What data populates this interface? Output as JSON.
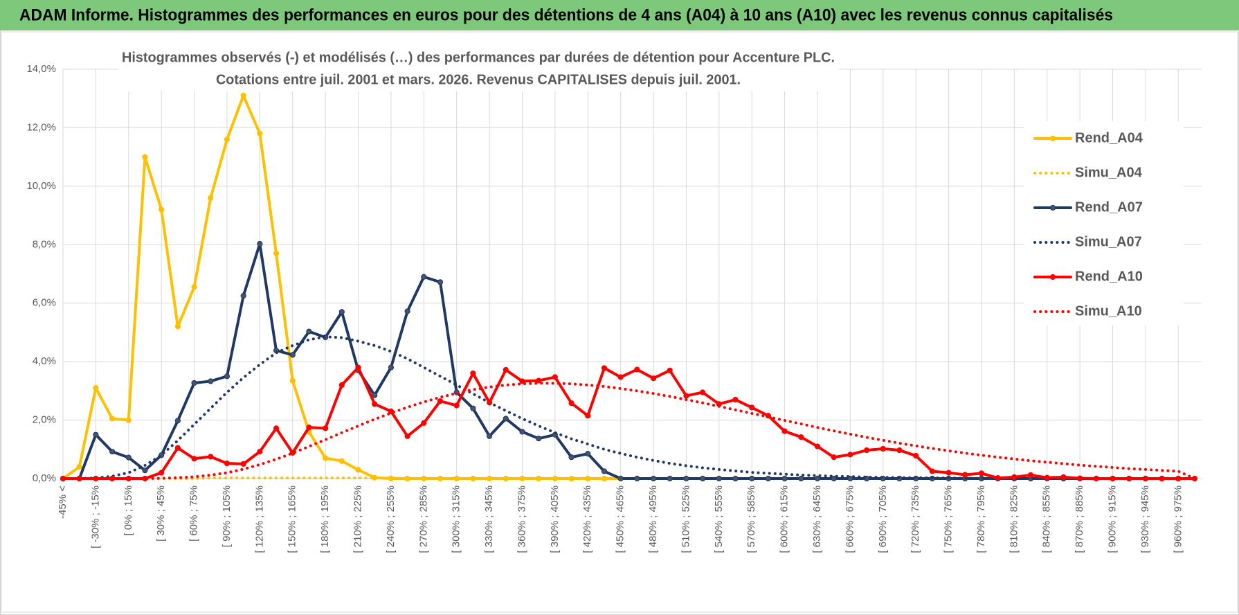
{
  "chart_data": {
    "type": "line",
    "title": "ADAM Informe. Histogrammes des performances en euros pour des détentions de 4 ans (A04) à 10 ans (A10) avec les revenus connus capitalisés",
    "subtitle": [
      "Histogrammes observés (-) et modélisés (…) des performances par durées de détention pour Accenture PLC.",
      "Cotations entre juil. 2001 et mars. 2026. Revenus CAPITALISES depuis juil. 2001."
    ],
    "categories": [
      "-45% <",
      null,
      "[ -30% ; -15%",
      null,
      "[ 0% ; 15%",
      null,
      "[ 30% ; 45%",
      null,
      "[ 60% ; 75%",
      null,
      "[ 90% ; 105%",
      null,
      "[ 120% ; 135%",
      null,
      "[ 150% ; 165%",
      null,
      "[ 180% ; 195%",
      null,
      "[ 210% ; 225%",
      null,
      "[ 240% ; 255%",
      null,
      "[ 270% ; 285%",
      null,
      "[ 300% ; 315%",
      null,
      "[ 330% ; 345%",
      null,
      "[ 360% ; 375%",
      null,
      "[ 390% ; 405%",
      null,
      "[ 420% ; 435%",
      null,
      "[ 450% ; 465%",
      null,
      "[ 480% ; 495%",
      null,
      "[ 510% ; 525%",
      null,
      "[ 540% ; 555%",
      null,
      "[ 570% ; 585%",
      null,
      "[ 600% ; 615%",
      null,
      "[ 630% ; 645%",
      null,
      "[ 660% ; 675%",
      null,
      "[ 690% ; 705%",
      null,
      "[ 720% ; 735%",
      null,
      "[ 750% ; 765%",
      null,
      "[ 780% ; 795%",
      null,
      "[ 810% ; 825%",
      null,
      "[ 840% ; 855%",
      null,
      "[ 870% ; 885%",
      null,
      "[ 900% ; 915%",
      null,
      "[ 930% ; 945%",
      null,
      "[ 960% ; 975%",
      null
    ],
    "ylim": [
      0,
      14
    ],
    "yticks": [
      {
        "value": 0,
        "label": "0,0%"
      },
      {
        "value": 2,
        "label": "2,0%"
      },
      {
        "value": 4,
        "label": "4,0%"
      },
      {
        "value": 6,
        "label": "6,0%"
      },
      {
        "value": 8,
        "label": "8,0%"
      },
      {
        "value": 10,
        "label": "10,0%"
      },
      {
        "value": 12,
        "label": "12,0%"
      },
      {
        "value": 14,
        "label": "14,0%"
      }
    ],
    "grid": true,
    "legend": "right",
    "series": [
      {
        "name": "Rend_A04",
        "color": "#ffc000",
        "style": "solid",
        "values": [
          0,
          0.4,
          3.1,
          2.05,
          2.0,
          11.0,
          9.2,
          5.2,
          6.55,
          9.6,
          11.6,
          13.1,
          11.8,
          7.7,
          3.35,
          1.6,
          0.7,
          0.6,
          0.3,
          0.03,
          0,
          0,
          0,
          0,
          0,
          0,
          0,
          0,
          0,
          0,
          0,
          0,
          0,
          0,
          0,
          0,
          0,
          0,
          0,
          0,
          0,
          0,
          0,
          0,
          0,
          0,
          0,
          0,
          0,
          0,
          0,
          0,
          0,
          0,
          0,
          0,
          0,
          0,
          0,
          0,
          0,
          0,
          0,
          0,
          0,
          0,
          0,
          0,
          0,
          0
        ]
      },
      {
        "name": "Simu_A04",
        "color": "#ffc000",
        "style": "dotted",
        "values": [
          0,
          0,
          0,
          0,
          0,
          0,
          0,
          0,
          0,
          0.02,
          0.02,
          0.02,
          0.02,
          0.02,
          0.02,
          0.02,
          0.02,
          0.02,
          0.02,
          0.02,
          0.02,
          0,
          0,
          0,
          0,
          0,
          0,
          0,
          0,
          0,
          0,
          0,
          0,
          0,
          0,
          0,
          0,
          0,
          0,
          0,
          0,
          0,
          0,
          0,
          0,
          0,
          0,
          0,
          0,
          0,
          0,
          0,
          0,
          0,
          0,
          0,
          0,
          0,
          0,
          0,
          0,
          0,
          0,
          0,
          0,
          0,
          0,
          0,
          0,
          0
        ]
      },
      {
        "name": "Rend_A07",
        "color": "#1f3864",
        "style": "solid",
        "values": [
          0,
          0,
          1.5,
          0.92,
          0.72,
          0.28,
          0.8,
          1.98,
          3.27,
          3.33,
          3.5,
          6.25,
          8.03,
          4.38,
          4.23,
          5.03,
          4.83,
          5.7,
          3.7,
          2.85,
          3.8,
          5.72,
          6.9,
          6.72,
          2.95,
          2.4,
          1.45,
          2.05,
          1.6,
          1.37,
          1.5,
          0.73,
          0.85,
          0.25,
          0,
          0,
          0,
          0,
          0,
          0,
          0,
          0,
          0,
          0,
          0,
          0,
          0,
          0,
          0,
          0,
          0,
          0,
          0,
          0,
          0,
          0,
          0,
          0,
          0,
          0,
          0,
          0,
          0,
          0,
          0,
          0,
          0,
          0,
          0,
          0
        ]
      },
      {
        "name": "Simu_A07",
        "color": "#1f3864",
        "style": "dotted",
        "values": [
          0,
          0,
          0.02,
          0.08,
          0.2,
          0.45,
          0.8,
          1.3,
          1.85,
          2.4,
          2.95,
          3.45,
          3.9,
          4.3,
          4.55,
          4.75,
          4.85,
          4.82,
          4.7,
          4.55,
          4.35,
          4.1,
          3.8,
          3.5,
          3.2,
          2.9,
          2.6,
          2.32,
          2.05,
          1.8,
          1.57,
          1.36,
          1.18,
          1.0,
          0.86,
          0.73,
          0.62,
          0.52,
          0.44,
          0.37,
          0.31,
          0.26,
          0.21,
          0.18,
          0.15,
          0.12,
          0.1,
          0.08,
          0.07,
          0.05,
          0.04,
          0.03,
          0.03,
          0.02,
          0.02,
          0.01,
          0.01,
          0.01,
          0,
          0,
          0,
          0,
          0,
          0,
          0,
          0,
          0,
          0,
          0,
          0
        ]
      },
      {
        "name": "Rend_A10",
        "color": "#ff0000",
        "style": "solid",
        "values": [
          0,
          0,
          0,
          0,
          0,
          0,
          0.2,
          1.05,
          0.68,
          0.75,
          0.52,
          0.5,
          0.92,
          1.72,
          0.88,
          1.75,
          1.72,
          3.2,
          3.8,
          2.55,
          2.3,
          1.45,
          1.9,
          2.65,
          2.5,
          3.6,
          2.6,
          3.72,
          3.33,
          3.35,
          3.47,
          2.58,
          2.15,
          3.78,
          3.47,
          3.73,
          3.43,
          3.7,
          2.83,
          2.95,
          2.55,
          2.7,
          2.43,
          2.15,
          1.62,
          1.42,
          1.1,
          0.73,
          0.82,
          0.97,
          1.02,
          0.97,
          0.78,
          0.25,
          0.2,
          0.13,
          0.18,
          0.02,
          0.05,
          0.12,
          0.03,
          0.05,
          0.01,
          0,
          0,
          0,
          0,
          0,
          0,
          0
        ]
      },
      {
        "name": "Simu_A10",
        "color": "#ff0000",
        "style": "dotted",
        "values": [
          0,
          0,
          0,
          0,
          0,
          0,
          0.01,
          0.03,
          0.06,
          0.12,
          0.2,
          0.32,
          0.48,
          0.66,
          0.87,
          1.1,
          1.33,
          1.57,
          1.8,
          2.03,
          2.24,
          2.44,
          2.62,
          2.78,
          2.92,
          3.04,
          3.13,
          3.2,
          3.24,
          3.26,
          3.26,
          3.24,
          3.2,
          3.15,
          3.08,
          3.0,
          2.91,
          2.81,
          2.7,
          2.59,
          2.47,
          2.35,
          2.23,
          2.11,
          1.99,
          1.87,
          1.75,
          1.63,
          1.52,
          1.41,
          1.31,
          1.21,
          1.12,
          1.03,
          0.95,
          0.87,
          0.8,
          0.73,
          0.67,
          0.61,
          0.56,
          0.51,
          0.46,
          0.42,
          0.38,
          0.34,
          0.31,
          0.28,
          0.25,
          0
        ]
      }
    ]
  }
}
